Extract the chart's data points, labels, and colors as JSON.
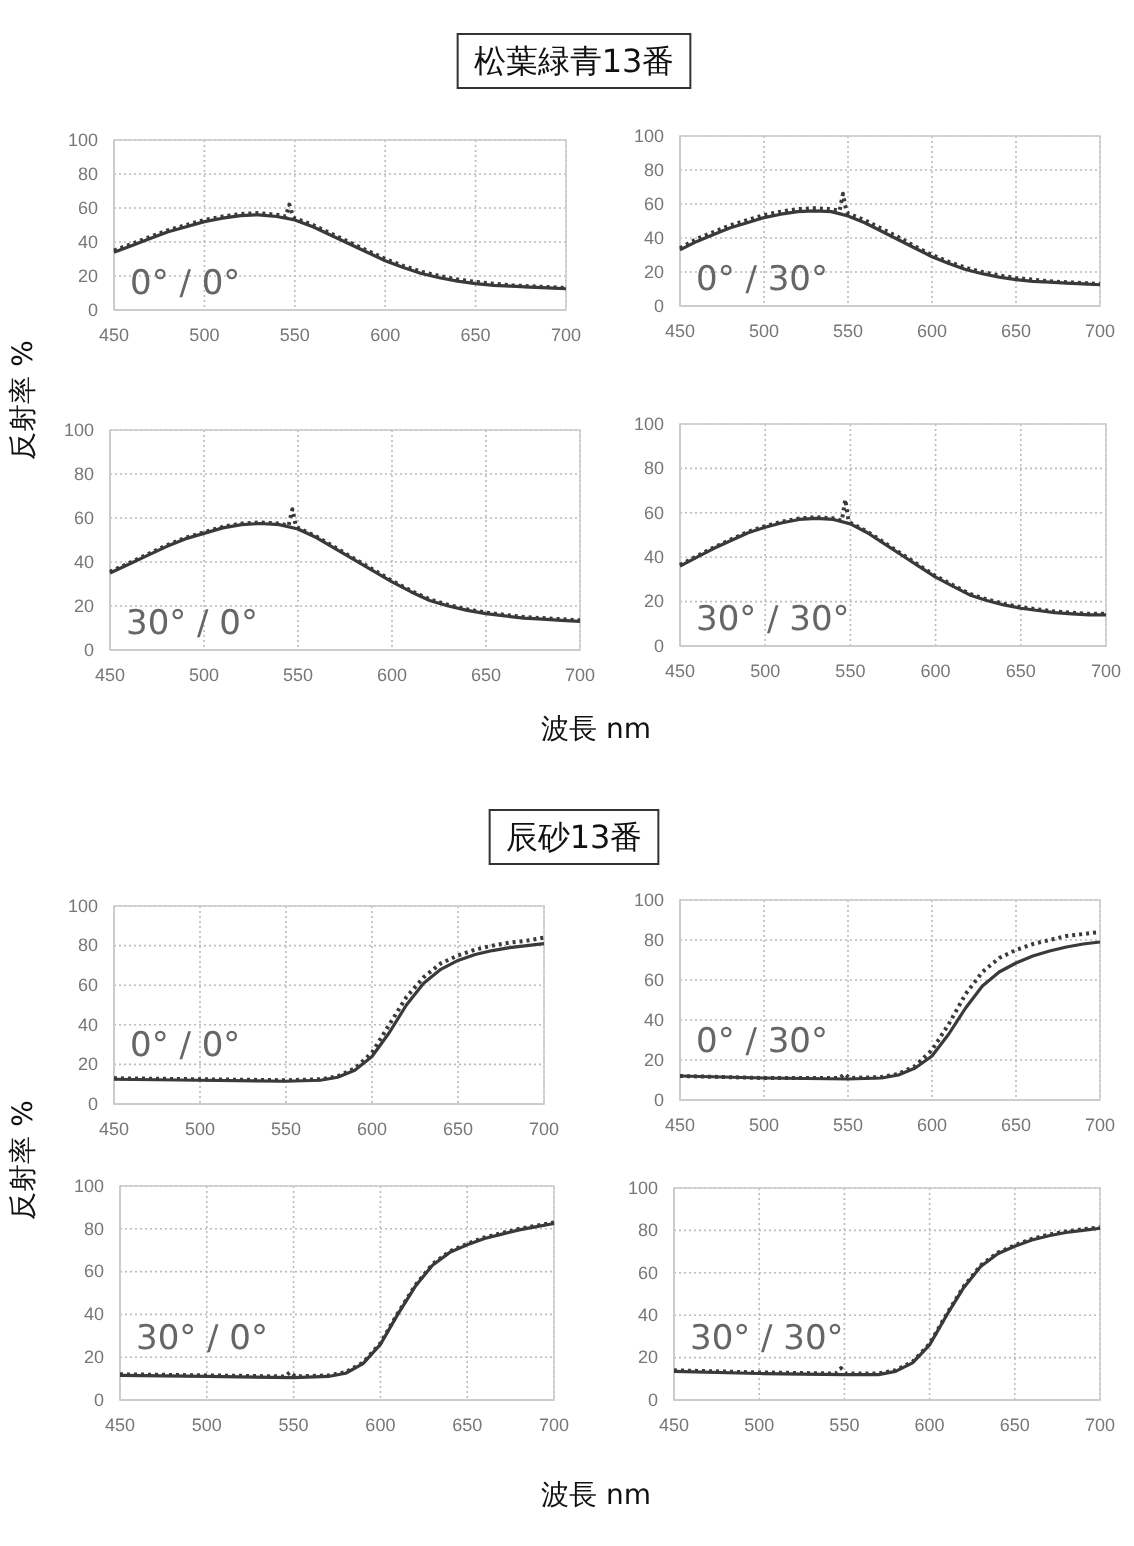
{
  "chart_data": [
    {
      "type": "line",
      "title": "松葉緑青13番",
      "ylabel": "反射率 %",
      "xlim": [
        450,
        700
      ],
      "xticks": [
        450,
        500,
        550,
        600,
        650,
        700
      ],
      "ylim": [
        0,
        100
      ],
      "yticks": [
        0,
        20,
        40,
        60,
        80,
        100
      ],
      "grid": true,
      "marker": "none",
      "annotations": [
        "0° / 0°"
      ],
      "series": [
        {
          "color": "#3a3a3a",
          "line_style": "solid",
          "x": [
            450,
            460,
            470,
            480,
            490,
            500,
            510,
            520,
            530,
            540,
            550,
            560,
            570,
            580,
            590,
            600,
            610,
            620,
            630,
            640,
            650,
            660,
            670,
            680,
            690,
            700
          ],
          "values": [
            34,
            38,
            42,
            46,
            49,
            52,
            54,
            55.5,
            56,
            55,
            53,
            49,
            44,
            39,
            34,
            29,
            25,
            21.5,
            19,
            17,
            15.5,
            14.5,
            14,
            13.5,
            13,
            12.5
          ]
        },
        {
          "color": "#3a3a3a",
          "line_style": "dotted",
          "x": [
            450,
            460,
            470,
            480,
            490,
            500,
            510,
            520,
            530,
            540,
            545,
            547,
            549,
            550,
            560,
            570,
            580,
            590,
            600,
            610,
            620,
            630,
            640,
            650,
            660,
            670,
            680,
            690,
            700
          ],
          "values": [
            35,
            39,
            43,
            47,
            50,
            53,
            55,
            56.5,
            57,
            56,
            55,
            62,
            55,
            54,
            50,
            45,
            40,
            35,
            30,
            26,
            22.5,
            20,
            18,
            16.5,
            15.5,
            14.5,
            14,
            13.5,
            13
          ]
        }
      ]
    },
    {
      "type": "line",
      "xlim": [
        450,
        700
      ],
      "xticks": [
        450,
        500,
        550,
        600,
        650,
        700
      ],
      "ylim": [
        0,
        100
      ],
      "yticks": [
        0,
        20,
        40,
        60,
        80,
        100
      ],
      "grid": true,
      "marker": "none",
      "annotations": [
        "0° / 30°"
      ],
      "series": [
        {
          "color": "#3a3a3a",
          "line_style": "solid",
          "x": [
            450,
            460,
            470,
            480,
            490,
            500,
            510,
            520,
            530,
            540,
            550,
            560,
            570,
            580,
            590,
            600,
            610,
            620,
            630,
            640,
            650,
            660,
            670,
            680,
            690,
            700
          ],
          "values": [
            33,
            38,
            42,
            46,
            49,
            52,
            54,
            55.5,
            56,
            55.5,
            53,
            49,
            44,
            39,
            34,
            29,
            25,
            21.5,
            19,
            17,
            15.5,
            14.5,
            14,
            13.5,
            13,
            12.5
          ]
        },
        {
          "color": "#3a3a3a",
          "line_style": "dotted",
          "x": [
            450,
            460,
            470,
            480,
            490,
            500,
            510,
            520,
            530,
            540,
            545,
            547,
            549,
            550,
            560,
            570,
            580,
            590,
            600,
            610,
            620,
            630,
            640,
            650,
            660,
            670,
            680,
            690,
            700
          ],
          "values": [
            34,
            39.5,
            43.5,
            47.5,
            50.5,
            53.5,
            55.5,
            57,
            57.5,
            57,
            56,
            66,
            56,
            54.5,
            50.5,
            45.5,
            40.5,
            35,
            30,
            26,
            22.5,
            20,
            18,
            16.5,
            15.5,
            14.5,
            14,
            13.5,
            13
          ]
        }
      ]
    },
    {
      "type": "line",
      "xlabel": "波長 nm",
      "xlim": [
        450,
        700
      ],
      "xticks": [
        450,
        500,
        550,
        600,
        650,
        700
      ],
      "ylim": [
        0,
        100
      ],
      "yticks": [
        0,
        20,
        40,
        60,
        80,
        100
      ],
      "grid": true,
      "marker": "none",
      "annotations": [
        "30° / 0°"
      ],
      "series": [
        {
          "color": "#3a3a3a",
          "line_style": "solid",
          "x": [
            450,
            460,
            470,
            480,
            490,
            500,
            510,
            520,
            530,
            540,
            550,
            560,
            570,
            580,
            590,
            600,
            610,
            620,
            630,
            640,
            650,
            660,
            670,
            680,
            690,
            700
          ],
          "values": [
            35,
            39,
            43,
            47,
            50.5,
            53,
            55.5,
            57,
            57.5,
            57,
            55,
            51,
            46,
            41,
            36,
            31,
            26.5,
            22.5,
            20,
            18,
            16.5,
            15.5,
            14.5,
            14,
            13.5,
            13
          ]
        },
        {
          "color": "#3a3a3a",
          "line_style": "dotted",
          "x": [
            450,
            460,
            470,
            480,
            490,
            500,
            510,
            520,
            530,
            540,
            545,
            547,
            549,
            550,
            560,
            570,
            580,
            590,
            600,
            610,
            620,
            630,
            640,
            650,
            660,
            670,
            680,
            690,
            700
          ],
          "values": [
            35.5,
            39.5,
            43.5,
            47.5,
            51,
            53.5,
            56,
            57.5,
            58,
            57.5,
            56.5,
            64,
            56,
            55.5,
            51.5,
            46.5,
            41.5,
            36.5,
            31.5,
            27,
            23,
            20.5,
            18.5,
            17,
            16,
            15,
            14.5,
            14,
            13.5
          ]
        }
      ]
    },
    {
      "type": "line",
      "xlim": [
        450,
        700
      ],
      "xticks": [
        450,
        500,
        550,
        600,
        650,
        700
      ],
      "ylim": [
        0,
        100
      ],
      "yticks": [
        0,
        20,
        40,
        60,
        80,
        100
      ],
      "grid": true,
      "marker": "none",
      "annotations": [
        "30° / 30°"
      ],
      "series": [
        {
          "color": "#3a3a3a",
          "line_style": "solid",
          "x": [
            450,
            460,
            470,
            480,
            490,
            500,
            510,
            520,
            530,
            540,
            550,
            560,
            570,
            580,
            590,
            600,
            610,
            620,
            630,
            640,
            650,
            660,
            670,
            680,
            690,
            700
          ],
          "values": [
            36,
            40,
            44,
            47.5,
            51,
            53.5,
            55.5,
            57,
            57.5,
            57,
            55,
            51,
            46,
            41,
            36,
            31,
            27,
            23,
            20.5,
            18.5,
            17,
            16,
            15,
            14.5,
            14,
            14
          ]
        },
        {
          "color": "#3a3a3a",
          "line_style": "dotted",
          "x": [
            450,
            460,
            470,
            480,
            490,
            500,
            510,
            520,
            530,
            540,
            545,
            547,
            549,
            550,
            560,
            570,
            580,
            590,
            600,
            610,
            620,
            630,
            640,
            650,
            660,
            670,
            680,
            690,
            700
          ],
          "values": [
            36.5,
            40.5,
            44.5,
            48,
            51.5,
            54,
            56,
            57.5,
            58,
            57.5,
            56.5,
            66,
            56,
            55.5,
            51.5,
            46.5,
            41.5,
            36.5,
            31.5,
            27.5,
            23.5,
            21,
            19,
            17.5,
            16.5,
            15.5,
            15,
            14.5,
            14.5
          ]
        }
      ]
    },
    {
      "type": "line",
      "title": "辰砂13番",
      "ylabel": "反射率 %",
      "xlim": [
        450,
        700
      ],
      "xticks": [
        450,
        500,
        550,
        600,
        650,
        700
      ],
      "ylim": [
        0,
        100
      ],
      "yticks": [
        0,
        20,
        40,
        60,
        80,
        100
      ],
      "grid": true,
      "marker": "none",
      "annotations": [
        "0° / 0°"
      ],
      "series": [
        {
          "color": "#3a3a3a",
          "line_style": "solid",
          "x": [
            450,
            500,
            550,
            570,
            580,
            590,
            600,
            610,
            620,
            630,
            640,
            650,
            660,
            670,
            680,
            690,
            700
          ],
          "values": [
            12.5,
            12,
            11.5,
            12,
            13.5,
            17,
            24,
            36,
            50,
            61,
            68,
            72.5,
            75.5,
            77.5,
            79,
            80,
            81
          ]
        },
        {
          "color": "#3a3a3a",
          "line_style": "dotted",
          "x": [
            450,
            500,
            550,
            570,
            580,
            590,
            600,
            610,
            620,
            630,
            640,
            650,
            660,
            670,
            680,
            690,
            700
          ],
          "values": [
            13,
            12.5,
            12,
            12.5,
            14,
            18,
            26,
            40,
            54,
            64,
            71,
            75,
            78,
            80,
            81.5,
            82.5,
            84
          ]
        }
      ]
    },
    {
      "type": "line",
      "xlim": [
        450,
        700
      ],
      "xticks": [
        450,
        500,
        550,
        600,
        650,
        700
      ],
      "ylim": [
        0,
        100
      ],
      "yticks": [
        0,
        20,
        40,
        60,
        80,
        100
      ],
      "grid": true,
      "marker": "none",
      "annotations": [
        "0° / 30°"
      ],
      "series": [
        {
          "color": "#3a3a3a",
          "line_style": "solid",
          "x": [
            450,
            500,
            550,
            570,
            580,
            590,
            600,
            610,
            620,
            630,
            640,
            650,
            660,
            670,
            680,
            690,
            700
          ],
          "values": [
            12,
            11,
            10.5,
            11,
            12.5,
            16,
            22,
            33,
            46,
            57,
            64,
            68.5,
            72,
            74.5,
            76.5,
            78,
            79
          ]
        },
        {
          "color": "#3a3a3a",
          "line_style": "dotted",
          "x": [
            450,
            500,
            545,
            548,
            551,
            570,
            580,
            590,
            600,
            610,
            620,
            630,
            640,
            650,
            660,
            670,
            680,
            690,
            700
          ],
          "values": [
            12,
            11,
            11,
            13,
            11,
            11.5,
            13,
            17,
            25,
            38,
            53,
            64,
            71,
            75,
            78,
            80,
            82,
            83,
            84
          ]
        }
      ]
    },
    {
      "type": "line",
      "xlabel": "波長 nm",
      "xlim": [
        450,
        700
      ],
      "xticks": [
        450,
        500,
        550,
        600,
        650,
        700
      ],
      "ylim": [
        0,
        100
      ],
      "yticks": [
        0,
        20,
        40,
        60,
        80,
        100
      ],
      "grid": true,
      "marker": "none",
      "annotations": [
        "30° / 0°"
      ],
      "series": [
        {
          "color": "#3a3a3a",
          "line_style": "solid",
          "x": [
            450,
            500,
            550,
            570,
            580,
            590,
            600,
            610,
            620,
            630,
            640,
            650,
            660,
            670,
            680,
            690,
            700
          ],
          "values": [
            11.5,
            11,
            10.5,
            11,
            12.5,
            17,
            26,
            40,
            53,
            63,
            69,
            72.5,
            75.5,
            77.5,
            79.5,
            81,
            82.5
          ]
        },
        {
          "color": "#3a3a3a",
          "line_style": "dotted",
          "x": [
            450,
            500,
            545,
            548,
            551,
            570,
            580,
            590,
            600,
            610,
            620,
            630,
            640,
            650,
            660,
            670,
            680,
            690,
            700
          ],
          "values": [
            12,
            11.5,
            11,
            13,
            11,
            11.5,
            13,
            17.5,
            26.5,
            40.5,
            53.5,
            63.5,
            69.5,
            73,
            76,
            78,
            80,
            81.5,
            83
          ]
        }
      ]
    },
    {
      "type": "line",
      "xlim": [
        450,
        700
      ],
      "xticks": [
        450,
        500,
        550,
        600,
        650,
        700
      ],
      "ylim": [
        0,
        100
      ],
      "yticks": [
        0,
        20,
        40,
        60,
        80,
        100
      ],
      "grid": true,
      "marker": "none",
      "annotations": [
        "30° / 30°"
      ],
      "series": [
        {
          "color": "#3a3a3a",
          "line_style": "solid",
          "x": [
            450,
            500,
            550,
            570,
            580,
            590,
            600,
            610,
            620,
            630,
            640,
            650,
            660,
            670,
            680,
            690,
            700
          ],
          "values": [
            13.5,
            12.5,
            12,
            12,
            13.5,
            17.5,
            26,
            40,
            53,
            63,
            69,
            72.5,
            75.5,
            77.5,
            79,
            80,
            81
          ]
        },
        {
          "color": "#3a3a3a",
          "line_style": "dotted",
          "x": [
            450,
            500,
            545,
            548,
            551,
            570,
            580,
            590,
            600,
            610,
            620,
            630,
            640,
            650,
            660,
            670,
            680,
            690,
            700
          ],
          "values": [
            14,
            13,
            12.5,
            15,
            12.5,
            12.5,
            14,
            18,
            26.5,
            40.5,
            53.5,
            63.5,
            69.5,
            73,
            76,
            78,
            79.5,
            80.5,
            81.5
          ]
        }
      ]
    }
  ]
}
